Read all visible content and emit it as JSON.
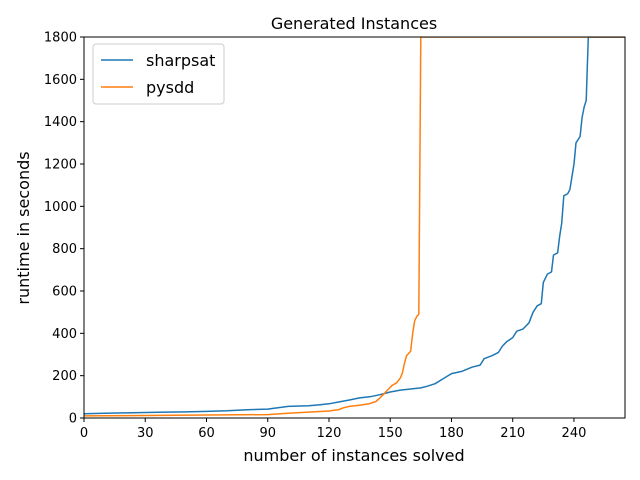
{
  "chart_data": {
    "type": "line",
    "title": "Generated Instances",
    "xlabel": "number of instances solved",
    "ylabel": "runtime in seconds",
    "xlim": [
      0,
      265
    ],
    "ylim": [
      0,
      1800
    ],
    "xticks": [
      0,
      30,
      60,
      90,
      120,
      150,
      180,
      210,
      240
    ],
    "yticks": [
      0,
      200,
      400,
      600,
      800,
      1000,
      1200,
      1400,
      1600,
      1800
    ],
    "grid": false,
    "legend_position": "upper-left",
    "series": [
      {
        "name": "sharpsat",
        "color": "#1f77b4",
        "points": [
          [
            0,
            20
          ],
          [
            10,
            22
          ],
          [
            20,
            24
          ],
          [
            30,
            26
          ],
          [
            40,
            28
          ],
          [
            50,
            29
          ],
          [
            60,
            31
          ],
          [
            70,
            34
          ],
          [
            80,
            39
          ],
          [
            90,
            42
          ],
          [
            95,
            48
          ],
          [
            100,
            55
          ],
          [
            110,
            58
          ],
          [
            115,
            62
          ],
          [
            120,
            67
          ],
          [
            125,
            76
          ],
          [
            130,
            85
          ],
          [
            135,
            95
          ],
          [
            140,
            100
          ],
          [
            145,
            110
          ],
          [
            150,
            123
          ],
          [
            155,
            132
          ],
          [
            160,
            137
          ],
          [
            165,
            142
          ],
          [
            168,
            150
          ],
          [
            172,
            162
          ],
          [
            175,
            180
          ],
          [
            180,
            210
          ],
          [
            185,
            220
          ],
          [
            190,
            240
          ],
          [
            194,
            250
          ],
          [
            196,
            280
          ],
          [
            200,
            295
          ],
          [
            203,
            310
          ],
          [
            205,
            340
          ],
          [
            207,
            360
          ],
          [
            210,
            380
          ],
          [
            212,
            410
          ],
          [
            215,
            420
          ],
          [
            218,
            450
          ],
          [
            220,
            500
          ],
          [
            222,
            530
          ],
          [
            224,
            540
          ],
          [
            225,
            640
          ],
          [
            227,
            680
          ],
          [
            229,
            690
          ],
          [
            230,
            770
          ],
          [
            232,
            780
          ],
          [
            233,
            860
          ],
          [
            234,
            920
          ],
          [
            235,
            1050
          ],
          [
            237,
            1060
          ],
          [
            238,
            1080
          ],
          [
            240,
            1200
          ],
          [
            241,
            1300
          ],
          [
            243,
            1330
          ],
          [
            244,
            1420
          ],
          [
            245,
            1470
          ],
          [
            246,
            1500
          ],
          [
            247,
            1800
          ],
          [
            265,
            1800
          ]
        ]
      },
      {
        "name": "pysdd",
        "color": "#ff7f0e",
        "points": [
          [
            0,
            10
          ],
          [
            30,
            12
          ],
          [
            60,
            14
          ],
          [
            90,
            16
          ],
          [
            100,
            22
          ],
          [
            110,
            28
          ],
          [
            120,
            33
          ],
          [
            125,
            40
          ],
          [
            127,
            48
          ],
          [
            130,
            55
          ],
          [
            135,
            60
          ],
          [
            140,
            68
          ],
          [
            143,
            78
          ],
          [
            145,
            95
          ],
          [
            147,
            115
          ],
          [
            149,
            135
          ],
          [
            151,
            155
          ],
          [
            153,
            165
          ],
          [
            155,
            190
          ],
          [
            156,
            215
          ],
          [
            157,
            260
          ],
          [
            158,
            295
          ],
          [
            160,
            315
          ],
          [
            161,
            400
          ],
          [
            162,
            460
          ],
          [
            163,
            480
          ],
          [
            164,
            490
          ],
          [
            165,
            1800
          ],
          [
            265,
            1800
          ]
        ]
      }
    ]
  }
}
